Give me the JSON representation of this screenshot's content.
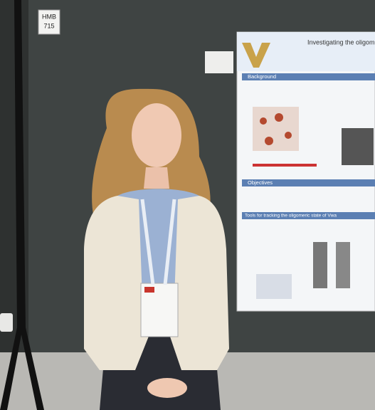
{
  "sign": {
    "line1": "HMB",
    "line2": "715"
  },
  "poster": {
    "title": "Investigating the oligom",
    "sections": [
      "Background",
      "Objectives",
      "Tools for tracking the oligomeric state of Vwa"
    ]
  }
}
